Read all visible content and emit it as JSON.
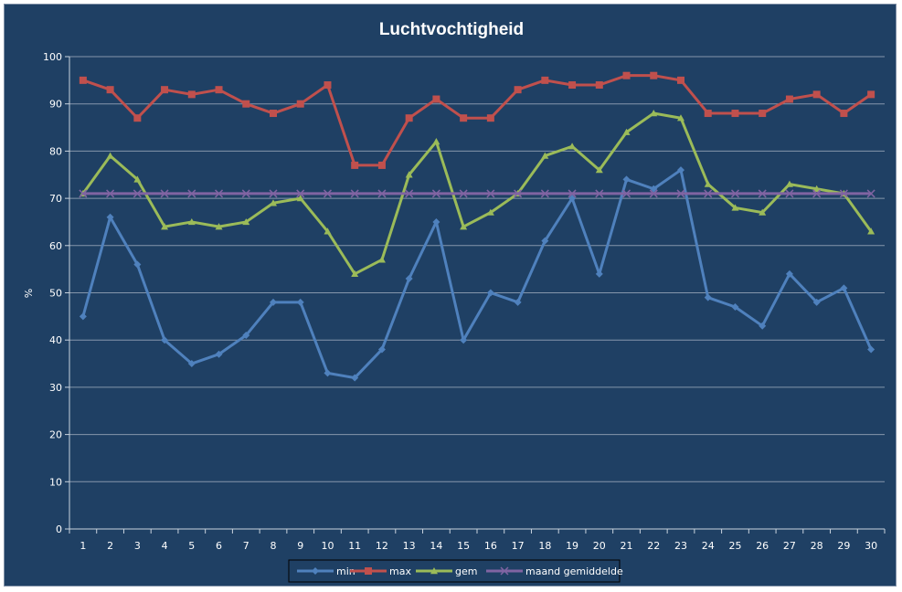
{
  "chart_data": {
    "type": "line",
    "title": "Luchtvochtigheid",
    "xlabel": "",
    "ylabel": "%",
    "ylim": [
      0,
      100
    ],
    "yticks": [
      0,
      10,
      20,
      30,
      40,
      50,
      60,
      70,
      80,
      90,
      100
    ],
    "categories": [
      "1",
      "2",
      "3",
      "4",
      "5",
      "6",
      "7",
      "8",
      "9",
      "10",
      "11",
      "12",
      "13",
      "14",
      "15",
      "16",
      "17",
      "18",
      "19",
      "20",
      "21",
      "22",
      "23",
      "24",
      "25",
      "26",
      "27",
      "28",
      "29",
      "30"
    ],
    "grid": "horizontal",
    "legend": "bottom",
    "series": [
      {
        "name": "min",
        "color": "#4f81bd",
        "marker": "diamond",
        "values": [
          45,
          66,
          56,
          40,
          35,
          37,
          41,
          48,
          48,
          33,
          32,
          38,
          53,
          65,
          40,
          50,
          48,
          61,
          70,
          54,
          74,
          72,
          76,
          49,
          47,
          43,
          54,
          48,
          51,
          38
        ]
      },
      {
        "name": "max",
        "color": "#c0504d",
        "marker": "square",
        "values": [
          95,
          93,
          87,
          93,
          92,
          93,
          90,
          88,
          90,
          94,
          77,
          77,
          87,
          91,
          87,
          87,
          93,
          95,
          94,
          94,
          96,
          96,
          95,
          88,
          88,
          88,
          91,
          92,
          88,
          92
        ]
      },
      {
        "name": "gem",
        "color": "#9bbb59",
        "marker": "triangle",
        "values": [
          71,
          79,
          74,
          64,
          65,
          64,
          65,
          69,
          70,
          63,
          54,
          57,
          75,
          82,
          64,
          67,
          71,
          79,
          81,
          76,
          84,
          88,
          87,
          73,
          68,
          67,
          73,
          72,
          71,
          63
        ]
      },
      {
        "name": "maand gemiddelde",
        "color": "#8064a2",
        "marker": "x",
        "values": [
          71,
          71,
          71,
          71,
          71,
          71,
          71,
          71,
          71,
          71,
          71,
          71,
          71,
          71,
          71,
          71,
          71,
          71,
          71,
          71,
          71,
          71,
          71,
          71,
          71,
          71,
          71,
          71,
          71,
          71
        ]
      }
    ]
  }
}
